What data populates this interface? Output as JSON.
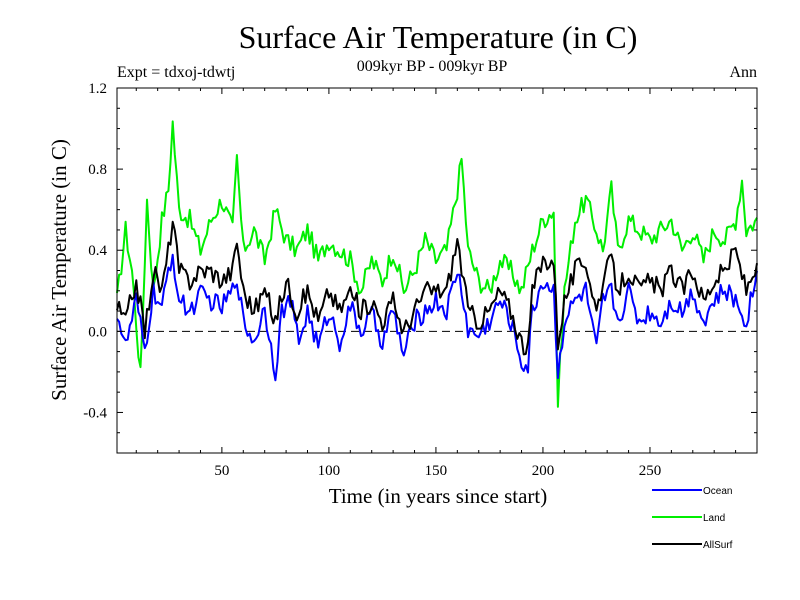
{
  "chart_data": {
    "type": "line",
    "title": "Surface Air Temperature (in C)",
    "subtitle": "009kyr BP - 009kyr BP",
    "experiment": "Expt = tdxoj-tdwtj",
    "season": "Ann",
    "xlabel": "Time (in years since start)",
    "ylabel": "Surface Air Temperature (in C)",
    "xlim": [
      1,
      300
    ],
    "ylim": [
      -0.6,
      1.2
    ],
    "xticks": [
      50,
      100,
      150,
      200,
      250
    ],
    "yticks": [
      -0.4,
      0.0,
      0.4,
      0.8,
      1.2
    ],
    "yticklabels": [
      "-0.4",
      "0.0",
      "0.4",
      "0.8",
      "1.2"
    ],
    "reference_line": 0.0,
    "series": [
      {
        "name": "Ocean",
        "color": "#0000ff",
        "knots": [
          [
            1,
            0.1
          ],
          [
            5,
            -0.08
          ],
          [
            10,
            0.15
          ],
          [
            14,
            -0.1
          ],
          [
            18,
            0.2
          ],
          [
            22,
            0.1
          ],
          [
            25,
            0.3
          ],
          [
            27,
            0.38
          ],
          [
            30,
            0.15
          ],
          [
            35,
            0.1
          ],
          [
            40,
            0.18
          ],
          [
            45,
            0.15
          ],
          [
            50,
            0.12
          ],
          [
            55,
            0.2
          ],
          [
            57,
            0.28
          ],
          [
            60,
            0.05
          ],
          [
            65,
            -0.05
          ],
          [
            70,
            0.12
          ],
          [
            75,
            -0.2
          ],
          [
            78,
            0.1
          ],
          [
            82,
            0.15
          ],
          [
            86,
            -0.05
          ],
          [
            90,
            0.1
          ],
          [
            95,
            -0.08
          ],
          [
            100,
            0.1
          ],
          [
            105,
            -0.05
          ],
          [
            110,
            0.12
          ],
          [
            115,
            0.0
          ],
          [
            120,
            0.08
          ],
          [
            125,
            -0.05
          ],
          [
            130,
            0.1
          ],
          [
            135,
            -0.12
          ],
          [
            140,
            0.05
          ],
          [
            145,
            0.1
          ],
          [
            150,
            0.15
          ],
          [
            155,
            0.1
          ],
          [
            160,
            0.3
          ],
          [
            163,
            0.15
          ],
          [
            165,
            0.0
          ],
          [
            170,
            -0.02
          ],
          [
            175,
            0.05
          ],
          [
            180,
            0.15
          ],
          [
            185,
            0.05
          ],
          [
            190,
            -0.15
          ],
          [
            193,
            -0.18
          ],
          [
            195,
            0.1
          ],
          [
            200,
            0.25
          ],
          [
            205,
            0.2
          ],
          [
            207,
            -0.2
          ],
          [
            210,
            0.05
          ],
          [
            215,
            0.15
          ],
          [
            220,
            0.2
          ],
          [
            225,
            -0.1
          ],
          [
            228,
            0.15
          ],
          [
            232,
            0.2
          ],
          [
            235,
            0.05
          ],
          [
            240,
            0.2
          ],
          [
            245,
            0.05
          ],
          [
            250,
            0.1
          ],
          [
            255,
            0.05
          ],
          [
            260,
            0.15
          ],
          [
            265,
            0.1
          ],
          [
            270,
            0.2
          ],
          [
            275,
            0.05
          ],
          [
            280,
            0.15
          ],
          [
            285,
            0.2
          ],
          [
            290,
            0.15
          ],
          [
            295,
            0.05
          ],
          [
            300,
            0.3
          ]
        ]
      },
      {
        "name": "Land",
        "color": "#00ee00",
        "knots": [
          [
            1,
            0.15
          ],
          [
            5,
            0.5
          ],
          [
            8,
            0.3
          ],
          [
            12,
            -0.22
          ],
          [
            15,
            0.65
          ],
          [
            18,
            0.2
          ],
          [
            22,
            0.55
          ],
          [
            25,
            0.7
          ],
          [
            27,
            1.03
          ],
          [
            30,
            0.6
          ],
          [
            35,
            0.55
          ],
          [
            40,
            0.4
          ],
          [
            45,
            0.55
          ],
          [
            50,
            0.65
          ],
          [
            55,
            0.5
          ],
          [
            57,
            0.85
          ],
          [
            60,
            0.4
          ],
          [
            65,
            0.5
          ],
          [
            70,
            0.35
          ],
          [
            75,
            0.6
          ],
          [
            80,
            0.45
          ],
          [
            85,
            0.4
          ],
          [
            90,
            0.5
          ],
          [
            95,
            0.35
          ],
          [
            100,
            0.45
          ],
          [
            105,
            0.4
          ],
          [
            110,
            0.35
          ],
          [
            115,
            0.2
          ],
          [
            120,
            0.35
          ],
          [
            125,
            0.25
          ],
          [
            130,
            0.4
          ],
          [
            135,
            0.2
          ],
          [
            140,
            0.3
          ],
          [
            145,
            0.45
          ],
          [
            150,
            0.35
          ],
          [
            155,
            0.4
          ],
          [
            160,
            0.7
          ],
          [
            162,
            0.85
          ],
          [
            165,
            0.4
          ],
          [
            170,
            0.25
          ],
          [
            175,
            0.2
          ],
          [
            180,
            0.35
          ],
          [
            185,
            0.3
          ],
          [
            190,
            0.2
          ],
          [
            195,
            0.4
          ],
          [
            200,
            0.55
          ],
          [
            205,
            0.6
          ],
          [
            207,
            -0.35
          ],
          [
            210,
            0.2
          ],
          [
            215,
            0.55
          ],
          [
            220,
            0.65
          ],
          [
            225,
            0.5
          ],
          [
            228,
            0.4
          ],
          [
            232,
            0.7
          ],
          [
            235,
            0.4
          ],
          [
            240,
            0.55
          ],
          [
            245,
            0.5
          ],
          [
            250,
            0.45
          ],
          [
            255,
            0.5
          ],
          [
            260,
            0.55
          ],
          [
            265,
            0.4
          ],
          [
            270,
            0.5
          ],
          [
            275,
            0.35
          ],
          [
            280,
            0.5
          ],
          [
            285,
            0.45
          ],
          [
            290,
            0.55
          ],
          [
            293,
            0.75
          ],
          [
            295,
            0.5
          ],
          [
            300,
            0.55
          ]
        ]
      },
      {
        "name": "AllSurf",
        "color": "#000000",
        "knots": [
          [
            1,
            0.12
          ],
          [
            5,
            0.05
          ],
          [
            10,
            0.25
          ],
          [
            14,
            0.0
          ],
          [
            18,
            0.3
          ],
          [
            22,
            0.2
          ],
          [
            25,
            0.4
          ],
          [
            27,
            0.55
          ],
          [
            30,
            0.3
          ],
          [
            35,
            0.25
          ],
          [
            40,
            0.3
          ],
          [
            45,
            0.3
          ],
          [
            50,
            0.25
          ],
          [
            55,
            0.3
          ],
          [
            57,
            0.45
          ],
          [
            60,
            0.2
          ],
          [
            65,
            0.1
          ],
          [
            70,
            0.2
          ],
          [
            75,
            0.05
          ],
          [
            80,
            0.25
          ],
          [
            85,
            0.1
          ],
          [
            90,
            0.2
          ],
          [
            95,
            0.05
          ],
          [
            100,
            0.2
          ],
          [
            105,
            0.1
          ],
          [
            110,
            0.2
          ],
          [
            115,
            0.1
          ],
          [
            120,
            0.15
          ],
          [
            125,
            0.05
          ],
          [
            130,
            0.15
          ],
          [
            135,
            0.0
          ],
          [
            140,
            0.1
          ],
          [
            145,
            0.2
          ],
          [
            150,
            0.2
          ],
          [
            155,
            0.2
          ],
          [
            160,
            0.45
          ],
          [
            163,
            0.25
          ],
          [
            165,
            0.1
          ],
          [
            170,
            0.05
          ],
          [
            175,
            0.1
          ],
          [
            180,
            0.2
          ],
          [
            185,
            0.1
          ],
          [
            190,
            -0.05
          ],
          [
            193,
            -0.1
          ],
          [
            195,
            0.2
          ],
          [
            200,
            0.35
          ],
          [
            205,
            0.35
          ],
          [
            207,
            -0.05
          ],
          [
            210,
            0.15
          ],
          [
            215,
            0.3
          ],
          [
            220,
            0.35
          ],
          [
            225,
            0.1
          ],
          [
            228,
            0.25
          ],
          [
            232,
            0.35
          ],
          [
            235,
            0.2
          ],
          [
            240,
            0.3
          ],
          [
            245,
            0.2
          ],
          [
            250,
            0.25
          ],
          [
            255,
            0.2
          ],
          [
            260,
            0.3
          ],
          [
            265,
            0.2
          ],
          [
            270,
            0.3
          ],
          [
            275,
            0.15
          ],
          [
            280,
            0.25
          ],
          [
            285,
            0.3
          ],
          [
            290,
            0.4
          ],
          [
            295,
            0.2
          ],
          [
            300,
            0.35
          ]
        ]
      }
    ]
  }
}
